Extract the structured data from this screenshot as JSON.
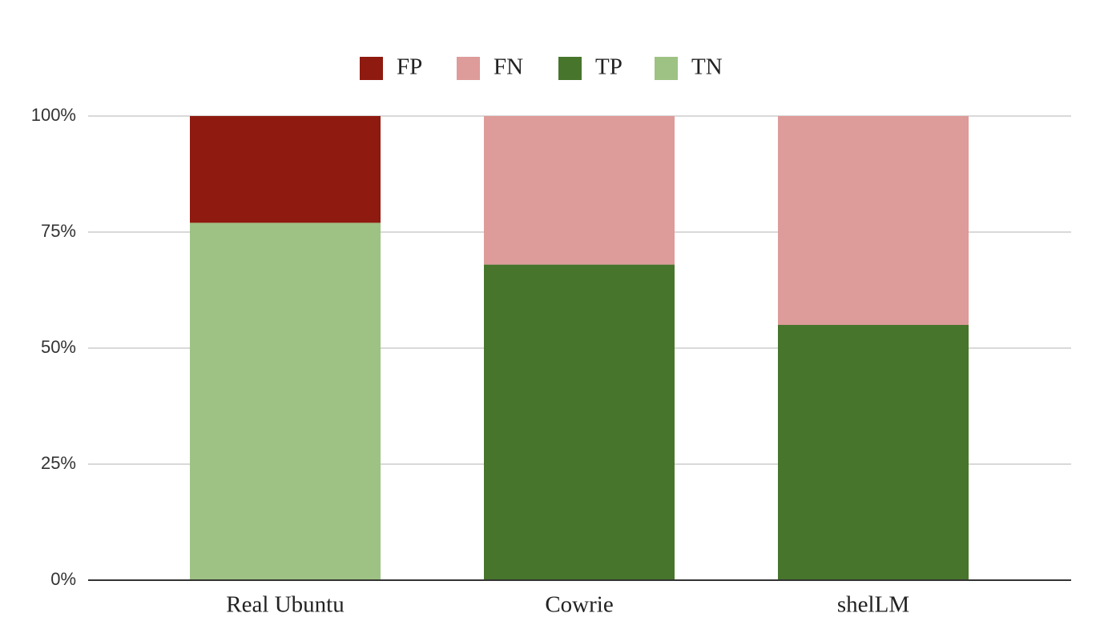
{
  "chart_data": {
    "type": "stacked_bar",
    "categories": [
      "Real Ubuntu",
      "Cowrie",
      "shelLM"
    ],
    "series": [
      {
        "name": "FP",
        "color": "#8e1a10",
        "values": [
          23,
          0,
          0
        ]
      },
      {
        "name": "FN",
        "color": "#dd9b99",
        "values": [
          0,
          32,
          45
        ]
      },
      {
        "name": "TP",
        "color": "#47752c",
        "values": [
          0,
          68,
          55
        ]
      },
      {
        "name": "TN",
        "color": "#9ec283",
        "values": [
          77,
          0,
          0
        ]
      }
    ],
    "ylim": [
      0,
      100
    ],
    "yticks": [
      {
        "value": 0,
        "label": "0%"
      },
      {
        "value": 25,
        "label": "25%"
      },
      {
        "value": 50,
        "label": "50%"
      },
      {
        "value": 75,
        "label": "75%"
      },
      {
        "value": 100,
        "label": "100%"
      }
    ],
    "grid": true,
    "legend": "top"
  }
}
